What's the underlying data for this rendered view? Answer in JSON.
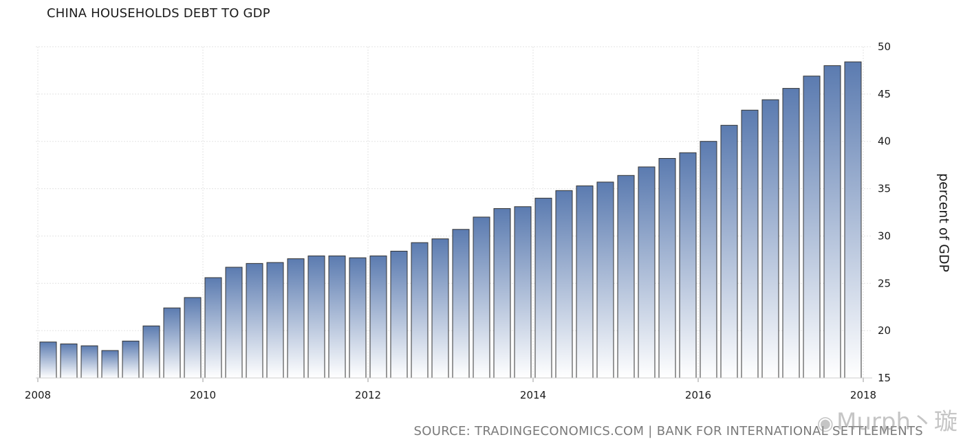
{
  "chart_data": {
    "type": "bar",
    "title": "CHINA HOUSEHOLDS DEBT TO GDP",
    "ylabel": "percent of GDP",
    "xlabel": "",
    "ylim": [
      15,
      50
    ],
    "yticks": [
      15,
      20,
      25,
      30,
      35,
      40,
      45,
      50
    ],
    "xlim": [
      "2008-01",
      "2018-01"
    ],
    "xticks": [
      "2008",
      "2010",
      "2012",
      "2014",
      "2016",
      "2018"
    ],
    "grid": true,
    "y_axis_position": "right",
    "bar_color_top": "#5b7bb0",
    "bar_color_bottom": "#ffffff",
    "categories": [
      "2008-03",
      "2008-06",
      "2008-09",
      "2008-12",
      "2009-03",
      "2009-06",
      "2009-09",
      "2009-12",
      "2010-03",
      "2010-06",
      "2010-09",
      "2010-12",
      "2011-03",
      "2011-06",
      "2011-09",
      "2011-12",
      "2012-03",
      "2012-06",
      "2012-09",
      "2012-12",
      "2013-03",
      "2013-06",
      "2013-09",
      "2013-12",
      "2014-03",
      "2014-06",
      "2014-09",
      "2014-12",
      "2015-03",
      "2015-06",
      "2015-09",
      "2015-12",
      "2016-03",
      "2016-06",
      "2016-09",
      "2016-12",
      "2017-03",
      "2017-06",
      "2017-09",
      "2017-12"
    ],
    "values": [
      18.8,
      18.6,
      18.4,
      17.9,
      18.9,
      20.5,
      22.4,
      23.5,
      25.6,
      26.7,
      27.1,
      27.2,
      27.6,
      27.9,
      27.9,
      27.7,
      27.9,
      28.4,
      29.3,
      29.7,
      30.7,
      32.0,
      32.9,
      33.1,
      34.0,
      34.8,
      35.3,
      35.7,
      36.4,
      37.3,
      38.2,
      38.8,
      40.0,
      41.7,
      43.3,
      44.4,
      45.6,
      46.9,
      48.0,
      48.4
    ]
  },
  "source": "SOURCE: TRADINGECONOMICS.COM | BANK FOR INTERNATIONAL SETTLEMENTS",
  "watermark": {
    "icon": "weibo-icon",
    "text": "Murph丶璇"
  }
}
